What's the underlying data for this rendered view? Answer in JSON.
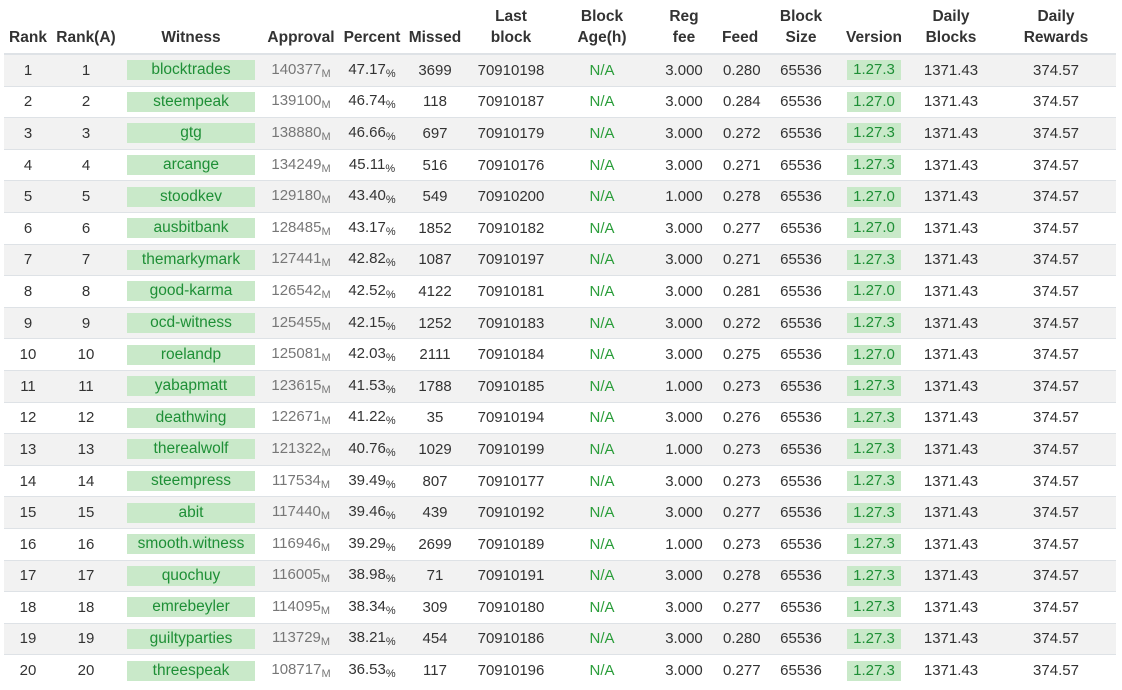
{
  "headers": {
    "rank": "Rank",
    "rank_a": "Rank(A)",
    "witness": "Witness",
    "approval": "Approval",
    "percent": "Percent",
    "missed": "Missed",
    "last_block_1": "Last",
    "last_block_2": "block",
    "block_age_1": "Block",
    "block_age_2": "Age(h)",
    "reg_fee_1": "Reg",
    "reg_fee_2": "fee",
    "feed": "Feed",
    "block_size_1": "Block",
    "block_size_2": "Size",
    "version": "Version",
    "daily_blocks_1": "Daily",
    "daily_blocks_2": "Blocks",
    "daily_rewards_1": "Daily",
    "daily_rewards_2": "Rewards"
  },
  "units": {
    "approval": "M",
    "percent": "%"
  },
  "rows": [
    {
      "rank": "1",
      "rank_a": "1",
      "witness": "blocktrades",
      "approval": "140377",
      "percent": "47.17",
      "missed": "3699",
      "last_block": "70910198",
      "block_age": "N/A",
      "reg_fee": "3.000",
      "feed": "0.280",
      "block_size": "65536",
      "version": "1.27.3",
      "daily_blocks": "1371.43",
      "daily_rewards": "374.57"
    },
    {
      "rank": "2",
      "rank_a": "2",
      "witness": "steempeak",
      "approval": "139100",
      "percent": "46.74",
      "missed": "118",
      "last_block": "70910187",
      "block_age": "N/A",
      "reg_fee": "3.000",
      "feed": "0.284",
      "block_size": "65536",
      "version": "1.27.0",
      "daily_blocks": "1371.43",
      "daily_rewards": "374.57"
    },
    {
      "rank": "3",
      "rank_a": "3",
      "witness": "gtg",
      "approval": "138880",
      "percent": "46.66",
      "missed": "697",
      "last_block": "70910179",
      "block_age": "N/A",
      "reg_fee": "3.000",
      "feed": "0.272",
      "block_size": "65536",
      "version": "1.27.3",
      "daily_blocks": "1371.43",
      "daily_rewards": "374.57"
    },
    {
      "rank": "4",
      "rank_a": "4",
      "witness": "arcange",
      "approval": "134249",
      "percent": "45.11",
      "missed": "516",
      "last_block": "70910176",
      "block_age": "N/A",
      "reg_fee": "3.000",
      "feed": "0.271",
      "block_size": "65536",
      "version": "1.27.3",
      "daily_blocks": "1371.43",
      "daily_rewards": "374.57"
    },
    {
      "rank": "5",
      "rank_a": "5",
      "witness": "stoodkev",
      "approval": "129180",
      "percent": "43.40",
      "missed": "549",
      "last_block": "70910200",
      "block_age": "N/A",
      "reg_fee": "1.000",
      "feed": "0.278",
      "block_size": "65536",
      "version": "1.27.0",
      "daily_blocks": "1371.43",
      "daily_rewards": "374.57"
    },
    {
      "rank": "6",
      "rank_a": "6",
      "witness": "ausbitbank",
      "approval": "128485",
      "percent": "43.17",
      "missed": "1852",
      "last_block": "70910182",
      "block_age": "N/A",
      "reg_fee": "3.000",
      "feed": "0.277",
      "block_size": "65536",
      "version": "1.27.0",
      "daily_blocks": "1371.43",
      "daily_rewards": "374.57"
    },
    {
      "rank": "7",
      "rank_a": "7",
      "witness": "themarkymark",
      "approval": "127441",
      "percent": "42.82",
      "missed": "1087",
      "last_block": "70910197",
      "block_age": "N/A",
      "reg_fee": "3.000",
      "feed": "0.271",
      "block_size": "65536",
      "version": "1.27.3",
      "daily_blocks": "1371.43",
      "daily_rewards": "374.57"
    },
    {
      "rank": "8",
      "rank_a": "8",
      "witness": "good-karma",
      "approval": "126542",
      "percent": "42.52",
      "missed": "4122",
      "last_block": "70910181",
      "block_age": "N/A",
      "reg_fee": "3.000",
      "feed": "0.281",
      "block_size": "65536",
      "version": "1.27.0",
      "daily_blocks": "1371.43",
      "daily_rewards": "374.57"
    },
    {
      "rank": "9",
      "rank_a": "9",
      "witness": "ocd-witness",
      "approval": "125455",
      "percent": "42.15",
      "missed": "1252",
      "last_block": "70910183",
      "block_age": "N/A",
      "reg_fee": "3.000",
      "feed": "0.272",
      "block_size": "65536",
      "version": "1.27.3",
      "daily_blocks": "1371.43",
      "daily_rewards": "374.57"
    },
    {
      "rank": "10",
      "rank_a": "10",
      "witness": "roelandp",
      "approval": "125081",
      "percent": "42.03",
      "missed": "2111",
      "last_block": "70910184",
      "block_age": "N/A",
      "reg_fee": "3.000",
      "feed": "0.275",
      "block_size": "65536",
      "version": "1.27.0",
      "daily_blocks": "1371.43",
      "daily_rewards": "374.57"
    },
    {
      "rank": "11",
      "rank_a": "11",
      "witness": "yabapmatt",
      "approval": "123615",
      "percent": "41.53",
      "missed": "1788",
      "last_block": "70910185",
      "block_age": "N/A",
      "reg_fee": "1.000",
      "feed": "0.273",
      "block_size": "65536",
      "version": "1.27.3",
      "daily_blocks": "1371.43",
      "daily_rewards": "374.57"
    },
    {
      "rank": "12",
      "rank_a": "12",
      "witness": "deathwing",
      "approval": "122671",
      "percent": "41.22",
      "missed": "35",
      "last_block": "70910194",
      "block_age": "N/A",
      "reg_fee": "3.000",
      "feed": "0.276",
      "block_size": "65536",
      "version": "1.27.3",
      "daily_blocks": "1371.43",
      "daily_rewards": "374.57"
    },
    {
      "rank": "13",
      "rank_a": "13",
      "witness": "therealwolf",
      "approval": "121322",
      "percent": "40.76",
      "missed": "1029",
      "last_block": "70910199",
      "block_age": "N/A",
      "reg_fee": "1.000",
      "feed": "0.273",
      "block_size": "65536",
      "version": "1.27.3",
      "daily_blocks": "1371.43",
      "daily_rewards": "374.57"
    },
    {
      "rank": "14",
      "rank_a": "14",
      "witness": "steempress",
      "approval": "117534",
      "percent": "39.49",
      "missed": "807",
      "last_block": "70910177",
      "block_age": "N/A",
      "reg_fee": "3.000",
      "feed": "0.273",
      "block_size": "65536",
      "version": "1.27.3",
      "daily_blocks": "1371.43",
      "daily_rewards": "374.57"
    },
    {
      "rank": "15",
      "rank_a": "15",
      "witness": "abit",
      "approval": "117440",
      "percent": "39.46",
      "missed": "439",
      "last_block": "70910192",
      "block_age": "N/A",
      "reg_fee": "3.000",
      "feed": "0.277",
      "block_size": "65536",
      "version": "1.27.3",
      "daily_blocks": "1371.43",
      "daily_rewards": "374.57"
    },
    {
      "rank": "16",
      "rank_a": "16",
      "witness": "smooth.witness",
      "approval": "116946",
      "percent": "39.29",
      "missed": "2699",
      "last_block": "70910189",
      "block_age": "N/A",
      "reg_fee": "1.000",
      "feed": "0.273",
      "block_size": "65536",
      "version": "1.27.3",
      "daily_blocks": "1371.43",
      "daily_rewards": "374.57"
    },
    {
      "rank": "17",
      "rank_a": "17",
      "witness": "quochuy",
      "approval": "116005",
      "percent": "38.98",
      "missed": "71",
      "last_block": "70910191",
      "block_age": "N/A",
      "reg_fee": "3.000",
      "feed": "0.278",
      "block_size": "65536",
      "version": "1.27.3",
      "daily_blocks": "1371.43",
      "daily_rewards": "374.57"
    },
    {
      "rank": "18",
      "rank_a": "18",
      "witness": "emrebeyler",
      "approval": "114095",
      "percent": "38.34",
      "missed": "309",
      "last_block": "70910180",
      "block_age": "N/A",
      "reg_fee": "3.000",
      "feed": "0.277",
      "block_size": "65536",
      "version": "1.27.3",
      "daily_blocks": "1371.43",
      "daily_rewards": "374.57"
    },
    {
      "rank": "19",
      "rank_a": "19",
      "witness": "guiltyparties",
      "approval": "113729",
      "percent": "38.21",
      "missed": "454",
      "last_block": "70910186",
      "block_age": "N/A",
      "reg_fee": "3.000",
      "feed": "0.280",
      "block_size": "65536",
      "version": "1.27.3",
      "daily_blocks": "1371.43",
      "daily_rewards": "374.57"
    },
    {
      "rank": "20",
      "rank_a": "20",
      "witness": "threespeak",
      "approval": "108717",
      "percent": "36.53",
      "missed": "117",
      "last_block": "70910196",
      "block_age": "N/A",
      "reg_fee": "3.000",
      "feed": "0.277",
      "block_size": "65536",
      "version": "1.27.3",
      "daily_blocks": "1371.43",
      "daily_rewards": "374.57"
    }
  ]
}
